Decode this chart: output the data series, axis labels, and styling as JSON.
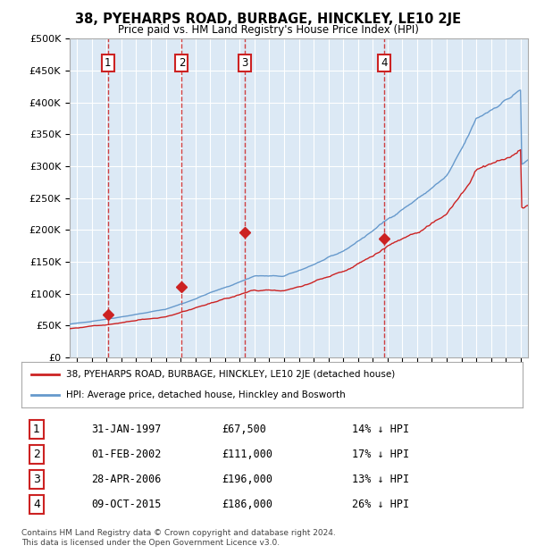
{
  "title": "38, PYEHARPS ROAD, BURBAGE, HINCKLEY, LE10 2JE",
  "subtitle": "Price paid vs. HM Land Registry's House Price Index (HPI)",
  "plot_bg_color": "#dce9f5",
  "ylim": [
    0,
    500000
  ],
  "yticks": [
    0,
    50000,
    100000,
    150000,
    200000,
    250000,
    300000,
    350000,
    400000,
    450000,
    500000
  ],
  "ytick_labels": [
    "£0",
    "£50K",
    "£100K",
    "£150K",
    "£200K",
    "£250K",
    "£300K",
    "£350K",
    "£400K",
    "£450K",
    "£500K"
  ],
  "xlim_start": 1994.5,
  "xlim_end": 2025.5,
  "hpi_color": "#6699cc",
  "price_color": "#cc2222",
  "marker_color": "#cc2222",
  "dashed_color": "#cc2222",
  "sale_dates": [
    1997.08,
    2002.08,
    2006.33,
    2015.77
  ],
  "sale_prices": [
    67500,
    111000,
    196000,
    186000
  ],
  "sale_labels": [
    "1",
    "2",
    "3",
    "4"
  ],
  "legend_price_label": "38, PYEHARPS ROAD, BURBAGE, HINCKLEY, LE10 2JE (detached house)",
  "legend_hpi_label": "HPI: Average price, detached house, Hinckley and Bosworth",
  "table_rows": [
    [
      "1",
      "31-JAN-1997",
      "£67,500",
      "14% ↓ HPI"
    ],
    [
      "2",
      "01-FEB-2002",
      "£111,000",
      "17% ↓ HPI"
    ],
    [
      "3",
      "28-APR-2006",
      "£196,000",
      "13% ↓ HPI"
    ],
    [
      "4",
      "09-OCT-2015",
      "£186,000",
      "26% ↓ HPI"
    ]
  ],
  "footer": "Contains HM Land Registry data © Crown copyright and database right 2024.\nThis data is licensed under the Open Government Licence v3.0."
}
